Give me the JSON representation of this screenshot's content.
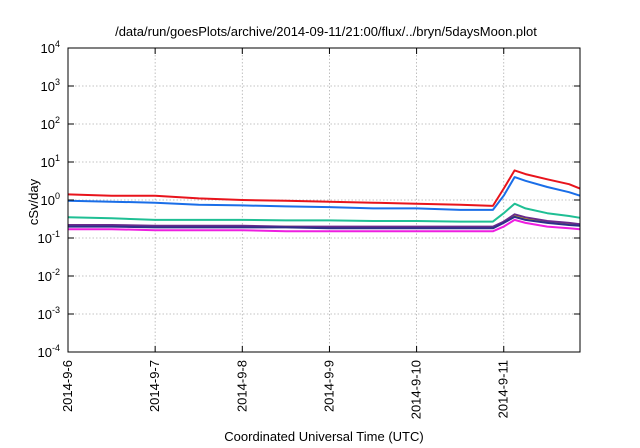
{
  "chart_data": {
    "type": "line",
    "title": "/data/run/goesPlots/archive/2014-09-11/21:00/flux/../bryn/5daysMoon.plot",
    "xlabel": "Coordinated Universal Time (UTC)",
    "ylabel": "cSv/day",
    "yscale": "log",
    "ylim": [
      0.0001,
      10000
    ],
    "xlim": [
      "2014-09-06",
      "2014-09-11T21:00"
    ],
    "grid": true,
    "legend": "none",
    "x_ticks": [
      {
        "value": "2014-09-06",
        "label": "2014-9-6"
      },
      {
        "value": "2014-09-07",
        "label": "2014-9-7"
      },
      {
        "value": "2014-09-08",
        "label": "2014-9-8"
      },
      {
        "value": "2014-09-09",
        "label": "2014-9-9"
      },
      {
        "value": "2014-09-10",
        "label": "2014-9-10"
      },
      {
        "value": "2014-09-11",
        "label": "2014-9-11"
      }
    ],
    "y_ticks": [
      {
        "value": 0.0001,
        "base": "10",
        "exp": "-4"
      },
      {
        "value": 0.001,
        "base": "10",
        "exp": "-3"
      },
      {
        "value": 0.01,
        "base": "10",
        "exp": "-2"
      },
      {
        "value": 0.1,
        "base": "10",
        "exp": "-1"
      },
      {
        "value": 1,
        "base": "10",
        "exp": "0"
      },
      {
        "value": 10,
        "base": "10",
        "exp": "1"
      },
      {
        "value": 100,
        "base": "10",
        "exp": "2"
      },
      {
        "value": 1000,
        "base": "10",
        "exp": "3"
      },
      {
        "value": 10000,
        "base": "10",
        "exp": "4"
      }
    ],
    "series": [
      {
        "color": "#e8141c",
        "x": [
          "2014-09-06T00:00",
          "2014-09-06T12:00",
          "2014-09-07T00:00",
          "2014-09-07T12:00",
          "2014-09-08T00:00",
          "2014-09-08T12:00",
          "2014-09-09T00:00",
          "2014-09-09T12:00",
          "2014-09-10T00:00",
          "2014-09-10T12:00",
          "2014-09-10T21:00",
          "2014-09-11T00:00",
          "2014-09-11T03:00",
          "2014-09-11T06:00",
          "2014-09-11T12:00",
          "2014-09-11T18:00",
          "2014-09-11T21:00"
        ],
        "y": [
          1.4,
          1.3,
          1.3,
          1.1,
          1.0,
          0.95,
          0.9,
          0.85,
          0.8,
          0.75,
          0.7,
          2.0,
          6.0,
          4.8,
          3.5,
          2.6,
          2.0
        ]
      },
      {
        "color": "#1a6ee8",
        "x": [
          "2014-09-06T00:00",
          "2014-09-06T12:00",
          "2014-09-07T00:00",
          "2014-09-07T12:00",
          "2014-09-08T00:00",
          "2014-09-08T12:00",
          "2014-09-09T00:00",
          "2014-09-09T12:00",
          "2014-09-10T00:00",
          "2014-09-10T12:00",
          "2014-09-10T21:00",
          "2014-09-11T00:00",
          "2014-09-11T03:00",
          "2014-09-11T06:00",
          "2014-09-11T12:00",
          "2014-09-11T18:00",
          "2014-09-11T21:00"
        ],
        "y": [
          0.95,
          0.9,
          0.85,
          0.75,
          0.72,
          0.68,
          0.65,
          0.6,
          0.6,
          0.55,
          0.55,
          1.3,
          4.0,
          3.2,
          2.2,
          1.6,
          1.3
        ]
      },
      {
        "color": "#1fbf94",
        "x": [
          "2014-09-06T00:00",
          "2014-09-06T12:00",
          "2014-09-07T00:00",
          "2014-09-07T12:00",
          "2014-09-08T00:00",
          "2014-09-08T12:00",
          "2014-09-09T00:00",
          "2014-09-09T12:00",
          "2014-09-10T00:00",
          "2014-09-10T12:00",
          "2014-09-10T21:00",
          "2014-09-11T00:00",
          "2014-09-11T03:00",
          "2014-09-11T06:00",
          "2014-09-11T12:00",
          "2014-09-11T18:00",
          "2014-09-11T21:00"
        ],
        "y": [
          0.35,
          0.33,
          0.3,
          0.3,
          0.3,
          0.29,
          0.29,
          0.28,
          0.28,
          0.27,
          0.27,
          0.45,
          0.8,
          0.6,
          0.45,
          0.38,
          0.34
        ]
      },
      {
        "color": "#d8c000",
        "x": [
          "2014-09-06T00:00",
          "2014-09-06T12:00",
          "2014-09-07T00:00",
          "2014-09-07T12:00",
          "2014-09-08T00:00",
          "2014-09-08T12:00",
          "2014-09-09T00:00",
          "2014-09-09T12:00",
          "2014-09-10T00:00",
          "2014-09-10T12:00",
          "2014-09-10T21:00",
          "2014-09-11T00:00",
          "2014-09-11T03:00",
          "2014-09-11T06:00",
          "2014-09-11T12:00",
          "2014-09-11T18:00",
          "2014-09-11T21:00"
        ],
        "y": [
          0.21,
          0.21,
          0.2,
          0.2,
          0.2,
          0.2,
          0.19,
          0.19,
          0.19,
          0.19,
          0.19,
          0.26,
          0.38,
          0.32,
          0.27,
          0.24,
          0.22
        ]
      },
      {
        "color": "#6a2a8c",
        "x": [
          "2014-09-06T00:00",
          "2014-09-06T12:00",
          "2014-09-07T00:00",
          "2014-09-07T12:00",
          "2014-09-08T00:00",
          "2014-09-08T12:00",
          "2014-09-09T00:00",
          "2014-09-09T12:00",
          "2014-09-10T00:00",
          "2014-09-10T12:00",
          "2014-09-10T21:00",
          "2014-09-11T00:00",
          "2014-09-11T03:00",
          "2014-09-11T06:00",
          "2014-09-11T12:00",
          "2014-09-11T18:00",
          "2014-09-11T21:00"
        ],
        "y": [
          0.22,
          0.22,
          0.21,
          0.21,
          0.21,
          0.2,
          0.2,
          0.2,
          0.2,
          0.2,
          0.2,
          0.27,
          0.42,
          0.35,
          0.28,
          0.25,
          0.23
        ]
      },
      {
        "color": "#2c2f8a",
        "x": [
          "2014-09-06T00:00",
          "2014-09-06T12:00",
          "2014-09-07T00:00",
          "2014-09-07T12:00",
          "2014-09-08T00:00",
          "2014-09-08T12:00",
          "2014-09-09T00:00",
          "2014-09-09T12:00",
          "2014-09-10T00:00",
          "2014-09-10T12:00",
          "2014-09-10T21:00",
          "2014-09-11T00:00",
          "2014-09-11T03:00",
          "2014-09-11T06:00",
          "2014-09-11T12:00",
          "2014-09-11T18:00",
          "2014-09-11T21:00"
        ],
        "y": [
          0.2,
          0.2,
          0.19,
          0.19,
          0.19,
          0.19,
          0.18,
          0.18,
          0.18,
          0.18,
          0.18,
          0.25,
          0.36,
          0.3,
          0.25,
          0.22,
          0.21
        ]
      },
      {
        "color": "#ee1ee0",
        "x": [
          "2014-09-06T00:00",
          "2014-09-06T12:00",
          "2014-09-07T00:00",
          "2014-09-07T12:00",
          "2014-09-08T00:00",
          "2014-09-08T12:00",
          "2014-09-09T00:00",
          "2014-09-09T12:00",
          "2014-09-10T00:00",
          "2014-09-10T12:00",
          "2014-09-10T21:00",
          "2014-09-11T00:00",
          "2014-09-11T03:00",
          "2014-09-11T06:00",
          "2014-09-11T12:00",
          "2014-09-11T18:00",
          "2014-09-11T21:00"
        ],
        "y": [
          0.17,
          0.17,
          0.16,
          0.16,
          0.16,
          0.15,
          0.15,
          0.15,
          0.15,
          0.15,
          0.15,
          0.2,
          0.3,
          0.25,
          0.2,
          0.18,
          0.17
        ]
      }
    ]
  }
}
